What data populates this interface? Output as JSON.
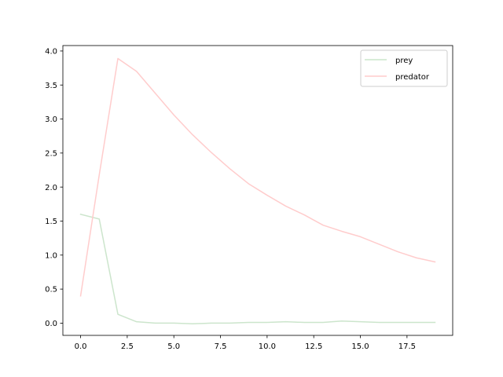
{
  "chart_data": {
    "type": "line",
    "title": "",
    "xlabel": "",
    "ylabel": "",
    "xlim": [
      -0.95,
      19.95
    ],
    "ylim": [
      -0.18,
      4.08
    ],
    "xticks": [
      0.0,
      2.5,
      5.0,
      7.5,
      10.0,
      12.5,
      15.0,
      17.5
    ],
    "xtick_labels": [
      "0.0",
      "2.5",
      "5.0",
      "7.5",
      "10.0",
      "12.5",
      "15.0",
      "17.5"
    ],
    "yticks": [
      0.0,
      0.5,
      1.0,
      1.5,
      2.0,
      2.5,
      3.0,
      3.5,
      4.0
    ],
    "ytick_labels": [
      "0.0",
      "0.5",
      "1.0",
      "1.5",
      "2.0",
      "2.5",
      "3.0",
      "3.5",
      "4.0"
    ],
    "grid": false,
    "legend": "top-right",
    "x": [
      0,
      1,
      2,
      3,
      4,
      5,
      6,
      7,
      8,
      9,
      10,
      11,
      12,
      13,
      14,
      15,
      16,
      17,
      18,
      19
    ],
    "series": [
      {
        "name": "prey",
        "color": "#cce5cc",
        "values": [
          1.6,
          1.53,
          0.13,
          0.02,
          0.0,
          0.0,
          -0.01,
          0.0,
          0.0,
          0.01,
          0.01,
          0.02,
          0.01,
          0.01,
          0.03,
          0.02,
          0.01,
          0.01,
          0.01,
          0.01
        ]
      },
      {
        "name": "predator",
        "color": "#ffcccc",
        "values": [
          0.4,
          2.18,
          3.89,
          3.7,
          3.38,
          3.06,
          2.77,
          2.51,
          2.27,
          2.05,
          1.88,
          1.72,
          1.59,
          1.44,
          1.35,
          1.27,
          1.16,
          1.05,
          0.96,
          0.9
        ]
      }
    ]
  }
}
